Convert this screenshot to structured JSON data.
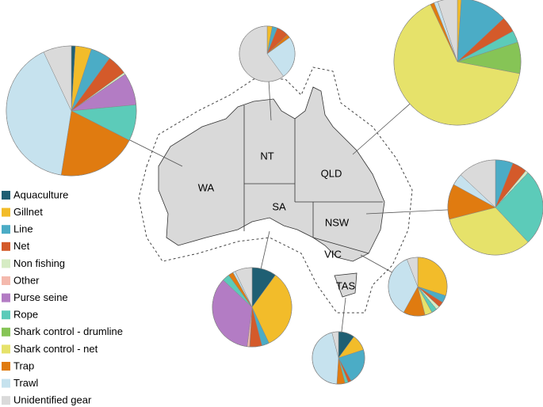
{
  "chart_data": {
    "type": "pie",
    "categories": [
      "Aquaculture",
      "Gillnet",
      "Line",
      "Net",
      "Non fishing",
      "Other",
      "Purse seine",
      "Rope",
      "Shark control - drumline",
      "Shark control - net",
      "Trap",
      "Trawl",
      "Unidentified gear"
    ],
    "colors": [
      "#1f5f73",
      "#f2bc2a",
      "#4bacc6",
      "#d45a2a",
      "#d6ecc4",
      "#f4b9ad",
      "#b37cc4",
      "#5ccbb9",
      "#86c456",
      "#e6e26a",
      "#e07b10",
      "#c6e2ee",
      "#dadada"
    ],
    "pies": [
      {
        "label": "WA",
        "values": [
          1,
          4,
          5,
          5,
          0.5,
          0,
          8,
          9,
          0,
          0,
          20,
          40.5,
          7
        ]
      },
      {
        "label": "NT",
        "values": [
          0,
          3,
          3,
          7,
          0,
          0,
          0,
          0,
          0,
          0,
          2,
          25,
          60
        ]
      },
      {
        "label": "QLD",
        "values": [
          0,
          1,
          12,
          4,
          0,
          0,
          0,
          3,
          8,
          65,
          1,
          1,
          5
        ]
      },
      {
        "label": "NSW",
        "values": [
          0,
          0,
          6,
          5,
          1,
          0,
          0,
          26,
          0,
          33,
          12,
          4,
          13
        ]
      },
      {
        "label": "SA",
        "values": [
          10,
          33,
          3,
          5,
          0,
          1,
          35,
          3,
          0,
          0,
          2,
          1,
          7
        ]
      },
      {
        "label": "VIC",
        "values": [
          0,
          30,
          4,
          3,
          2,
          0,
          0,
          3,
          0,
          4,
          12,
          36,
          6
        ]
      },
      {
        "label": "TAS",
        "values": [
          10,
          10,
          22,
          2,
          0,
          0,
          0,
          2,
          0,
          0,
          5,
          45,
          4
        ]
      }
    ]
  }
}
